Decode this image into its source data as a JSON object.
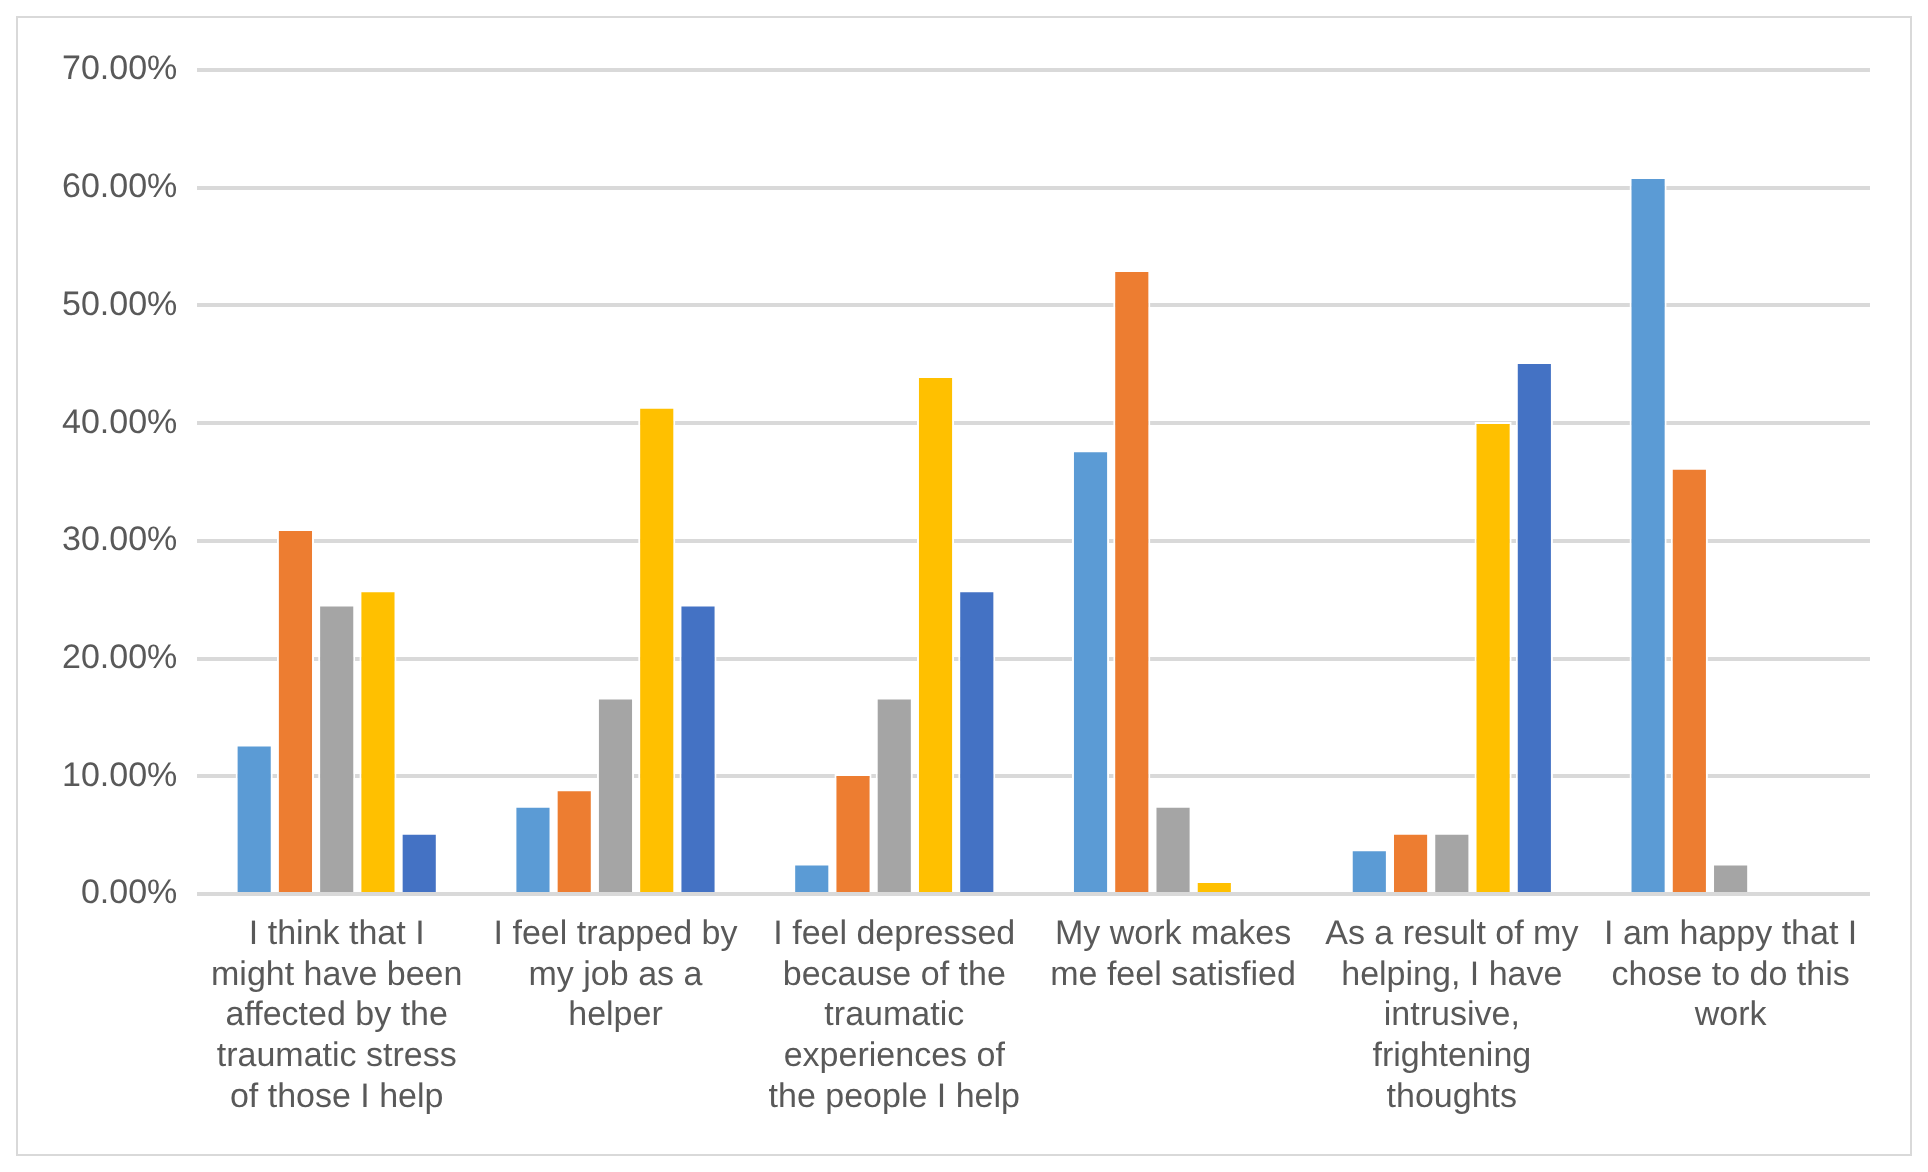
{
  "chart_data": {
    "type": "bar",
    "categories": [
      "I think that I might have been affected by the traumatic stress of those I help",
      "I feel trapped by my job as a helper",
      "I feel depressed because of the traumatic experiences of the people I help",
      "My work makes me feel satisfied",
      "As a result of my helping, I have intrusive, frightening thoughts",
      "I am happy that I chose to do this work"
    ],
    "series": [
      {
        "color": "#5b9bd5",
        "values": [
          12.7,
          7.5,
          2.6,
          37.7,
          3.8,
          60.9
        ]
      },
      {
        "color": "#ed7d31",
        "values": [
          31.0,
          8.9,
          10.2,
          53.0,
          5.2,
          36.2
        ]
      },
      {
        "color": "#a5a5a5",
        "values": [
          24.6,
          16.7,
          16.7,
          7.5,
          5.2,
          2.6
        ]
      },
      {
        "color": "#ffc000",
        "values": [
          25.8,
          41.4,
          44.0,
          1.1,
          40.1,
          0
        ]
      },
      {
        "color": "#4472c4",
        "values": [
          5.2,
          24.6,
          25.8,
          0,
          45.2,
          0
        ]
      }
    ],
    "ylim": [
      0,
      70
    ],
    "yticks": [
      {
        "value": 0,
        "label": "0.00%"
      },
      {
        "value": 10,
        "label": "10.00%"
      },
      {
        "value": 20,
        "label": "20.00%"
      },
      {
        "value": 30,
        "label": "30.00%"
      },
      {
        "value": 40,
        "label": "40.00%"
      },
      {
        "value": 50,
        "label": "50.00%"
      },
      {
        "value": 60,
        "label": "60.00%"
      },
      {
        "value": 70,
        "label": "70.00%"
      }
    ],
    "grid": "y"
  }
}
